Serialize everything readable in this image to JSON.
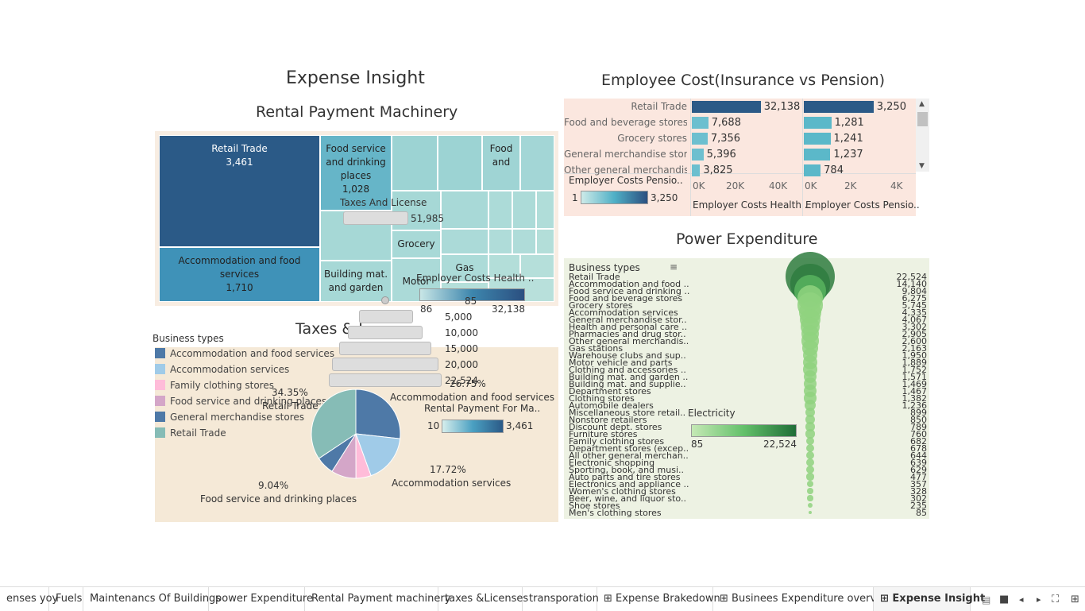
{
  "dashboard": {
    "title": "Expense Insight"
  },
  "rental": {
    "title": "Rental Payment Machinery",
    "cells": [
      {
        "label": "Retail Trade",
        "value": "3,461"
      },
      {
        "label": "Food service and drinking places",
        "value": "1,028"
      },
      {
        "label": "Food and",
        "value": ""
      },
      {
        "label": "Accommodation and food services",
        "value": "1,710"
      },
      {
        "label": "Grocery",
        "value": ""
      },
      {
        "label": "Gas",
        "value": ""
      },
      {
        "label": "Building mat. and garden",
        "value": ""
      },
      {
        "label": "Motor",
        "value": ""
      }
    ],
    "legend_title": "Rental Payment For Ma..",
    "legend_min": "10",
    "legend_max": "3,461"
  },
  "taxes": {
    "title": "Taxes & L",
    "overlay_title": "Taxes And License",
    "overlay_value": "51,985",
    "overlay_electricity": "Electricity",
    "scale": [
      "5,000",
      "10,000",
      "15,000",
      "20,000",
      "22,524"
    ],
    "legend_title": "Business types",
    "legend": [
      {
        "label": "Accommodation and food services",
        "color": "#4e79a7"
      },
      {
        "label": "Accommodation services",
        "color": "#a0cbe8"
      },
      {
        "label": "Family clothing stores",
        "color": "#ffbcd9"
      },
      {
        "label": "Food service and drinking places",
        "color": "#d4a6c8"
      },
      {
        "label": "General merchandise stores",
        "color": "#4e79a7"
      },
      {
        "label": "Retail Trade",
        "color": "#86bcb6"
      }
    ],
    "pie_labels": {
      "retail_pct": "34.35%",
      "retail": "Retail Trade",
      "accfood_pct": "26.75%",
      "accfood": "Accommodation and food services",
      "acc_pct": "17.72%",
      "acc": "Accommodation services",
      "food_pct": "9.04%",
      "food": "Food service and drinking places"
    },
    "pie_slices": [
      {
        "name": "Accommodation and food services",
        "value": 26.75,
        "color": "#4e79a7"
      },
      {
        "name": "Accommodation services",
        "value": 17.72,
        "color": "#a0cbe8"
      },
      {
        "name": "Family clothing stores",
        "value": 5.5,
        "color": "#ffbcd9"
      },
      {
        "name": "Food service and drinking places",
        "value": 9.04,
        "color": "#d4a6c8"
      },
      {
        "name": "General merchandise stores",
        "value": 6.64,
        "color": "#4e79a7"
      },
      {
        "name": "Retail Trade",
        "value": 34.35,
        "color": "#86bcb6"
      }
    ]
  },
  "employee": {
    "title": "Employee Cost(Insurance vs Pension)",
    "rows": [
      {
        "label": "Retail Trade",
        "health": 32138,
        "health_label": "32,138",
        "pension": 3250,
        "pension_label": "3,250"
      },
      {
        "label": "Food and beverage stores",
        "health": 7688,
        "health_label": "7,688",
        "pension": 1281,
        "pension_label": "1,281"
      },
      {
        "label": "Grocery stores",
        "health": 7356,
        "health_label": "7,356",
        "pension": 1241,
        "pension_label": "1,241"
      },
      {
        "label": "General merchandise stor..",
        "health": 5396,
        "health_label": "5,396",
        "pension": 1237,
        "pension_label": "1,237"
      },
      {
        "label": "Other general merchandis..",
        "health": 3825,
        "health_label": "3,825",
        "pension": 784,
        "pension_label": "784"
      }
    ],
    "health_axis": [
      "0K",
      "20K",
      "40K"
    ],
    "pension_axis": [
      "0K",
      "2K",
      "4K"
    ],
    "health_axis_title": "Employer Costs Health ..",
    "pension_axis_title": "Employer Costs Pensio..",
    "legend_title": "Employer Costs Pensio..",
    "legend_min": "1",
    "legend_max": "3,250",
    "health_legend_title": "Employer Costs Health ..",
    "health_legend_min": "86",
    "health_legend_mid": "85",
    "health_legend_max": "32,138"
  },
  "power": {
    "title": "Power Expenditure",
    "header": "Business types",
    "legend_title": "Electricity",
    "legend_min": "85",
    "legend_max": "22,524",
    "rows": [
      {
        "label": "Retail Trade",
        "value": 22524,
        "value_label": "22,524"
      },
      {
        "label": "Accommodation and food ..",
        "value": 14140,
        "value_label": "14,140"
      },
      {
        "label": "Food service and drinking ..",
        "value": 9804,
        "value_label": "9,804"
      },
      {
        "label": "Food and beverage stores",
        "value": 6275,
        "value_label": "6,275"
      },
      {
        "label": "Grocery stores",
        "value": 5745,
        "value_label": "5,745"
      },
      {
        "label": "Accommodation services",
        "value": 4335,
        "value_label": "4,335"
      },
      {
        "label": "General merchandise stor..",
        "value": 4067,
        "value_label": "4,067"
      },
      {
        "label": "Health and personal care ..",
        "value": 3302,
        "value_label": "3,302"
      },
      {
        "label": "Pharmacies and drug stor..",
        "value": 2905,
        "value_label": "2,905"
      },
      {
        "label": "Other general merchandis..",
        "value": 2600,
        "value_label": "2,600"
      },
      {
        "label": "Gas stations",
        "value": 2163,
        "value_label": "2,163"
      },
      {
        "label": "Warehouse clubs and sup..",
        "value": 1950,
        "value_label": "1,950"
      },
      {
        "label": "Motor vehicle and parts",
        "value": 1889,
        "value_label": "1,889"
      },
      {
        "label": "Clothing and accessories ..",
        "value": 1752,
        "value_label": "1,752"
      },
      {
        "label": "Building mat. and garden ..",
        "value": 1571,
        "value_label": "1,571"
      },
      {
        "label": "Building mat. and supplie..",
        "value": 1469,
        "value_label": "1,469"
      },
      {
        "label": "Department stores",
        "value": 1467,
        "value_label": "1,467"
      },
      {
        "label": "Clothing stores",
        "value": 1382,
        "value_label": "1,382"
      },
      {
        "label": "Automobile dealers",
        "value": 1236,
        "value_label": "1,236"
      },
      {
        "label": "Miscellaneous store retail..",
        "value": 899,
        "value_label": "899"
      },
      {
        "label": "Nonstore retailers",
        "value": 850,
        "value_label": "850"
      },
      {
        "label": "Discount dept. stores",
        "value": 789,
        "value_label": "789"
      },
      {
        "label": "Furniture stores",
        "value": 760,
        "value_label": "760"
      },
      {
        "label": "Family clothing stores",
        "value": 682,
        "value_label": "682"
      },
      {
        "label": "Department stores (excep..",
        "value": 678,
        "value_label": "678"
      },
      {
        "label": "All other general merchan..",
        "value": 644,
        "value_label": "644"
      },
      {
        "label": "Electronic shopping",
        "value": 639,
        "value_label": "639"
      },
      {
        "label": "Sporting, book, and musi..",
        "value": 629,
        "value_label": "629"
      },
      {
        "label": "Auto parts and tire stores",
        "value": 477,
        "value_label": "477"
      },
      {
        "label": "Electronics and appliance ..",
        "value": 357,
        "value_label": "357"
      },
      {
        "label": "Women's clothing stores",
        "value": 328,
        "value_label": "328"
      },
      {
        "label": "Beer, wine, and liquor sto..",
        "value": 302,
        "value_label": "302"
      },
      {
        "label": "Shoe stores",
        "value": 235,
        "value_label": "235"
      },
      {
        "label": "Men's clothing stores",
        "value": 85,
        "value_label": "85"
      }
    ]
  },
  "tabs": [
    {
      "label": "enses yoy",
      "active": false,
      "icon": false
    },
    {
      "label": "Fuels",
      "active": false,
      "icon": false
    },
    {
      "label": "Maintenancs Of Buildings",
      "active": false,
      "icon": false
    },
    {
      "label": "power Expenditure",
      "active": false,
      "icon": false
    },
    {
      "label": "Rental Payment machinery",
      "active": false,
      "icon": false
    },
    {
      "label": "taxes &Licenses",
      "active": false,
      "icon": false
    },
    {
      "label": "transporation",
      "active": false,
      "icon": false
    },
    {
      "label": "Expense Brakedown",
      "active": false,
      "icon": true
    },
    {
      "label": "Businees Expenditure overvies",
      "active": false,
      "icon": true
    },
    {
      "label": "Expense Insight",
      "active": true,
      "icon": true
    }
  ]
}
